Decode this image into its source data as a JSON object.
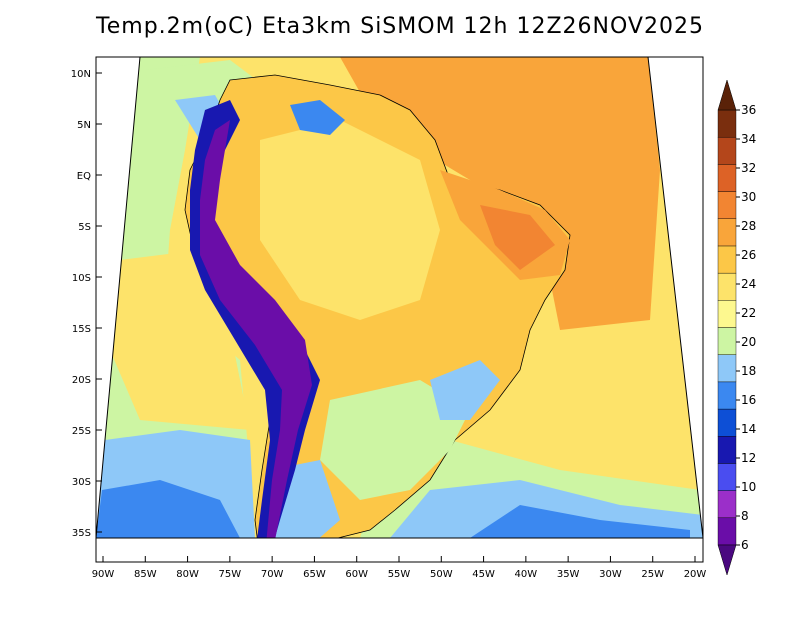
{
  "title": "Temp.2m(oC) Eta3km SiSMOM 12h 12Z26NOV2025",
  "lat_axis": {
    "labels": [
      "10N",
      "5N",
      "EQ",
      "5S",
      "10S",
      "15S",
      "20S",
      "25S",
      "30S",
      "35S"
    ],
    "values": [
      10,
      5,
      0,
      -5,
      -10,
      -15,
      -20,
      -25,
      -30,
      -35
    ]
  },
  "lon_axis": {
    "labels": [
      "90W",
      "85W",
      "80W",
      "75W",
      "70W",
      "65W",
      "60W",
      "55W",
      "50W",
      "45W",
      "40W",
      "35W",
      "30W",
      "25W",
      "20W"
    ],
    "values": [
      -90,
      -85,
      -80,
      -75,
      -70,
      -65,
      -60,
      -55,
      -50,
      -45,
      -40,
      -35,
      -30,
      -25,
      -20
    ]
  },
  "colorbar": {
    "labels": [
      "36",
      "34",
      "32",
      "30",
      "28",
      "26",
      "24",
      "22",
      "20",
      "18",
      "16",
      "14",
      "12",
      "10",
      "8",
      "6"
    ],
    "colors_low_to_high": [
      "#6a0da8",
      "#9b2fc9",
      "#4a4df0",
      "#1818b0",
      "#0d4fd6",
      "#3b88f0",
      "#8ec8f8",
      "#cdf5a3",
      "#fdf88f",
      "#fde36a",
      "#fcc747",
      "#f9a53a",
      "#f28532",
      "#dd6226",
      "#b4461b",
      "#7a2e0e"
    ],
    "arrow_bottom_color": "#4a0880",
    "arrow_top_color": "#5a2208"
  },
  "palette": {
    "ocean_warm": "#f9a53a",
    "ocean_mild": "#fde36a",
    "land_base": "#fcc747",
    "cool": "#cdf5a3",
    "cold": "#8ec8f8",
    "andes": "#6a0da8"
  },
  "icons": [
    "continent-outline",
    "country-borders",
    "state-borders"
  ]
}
